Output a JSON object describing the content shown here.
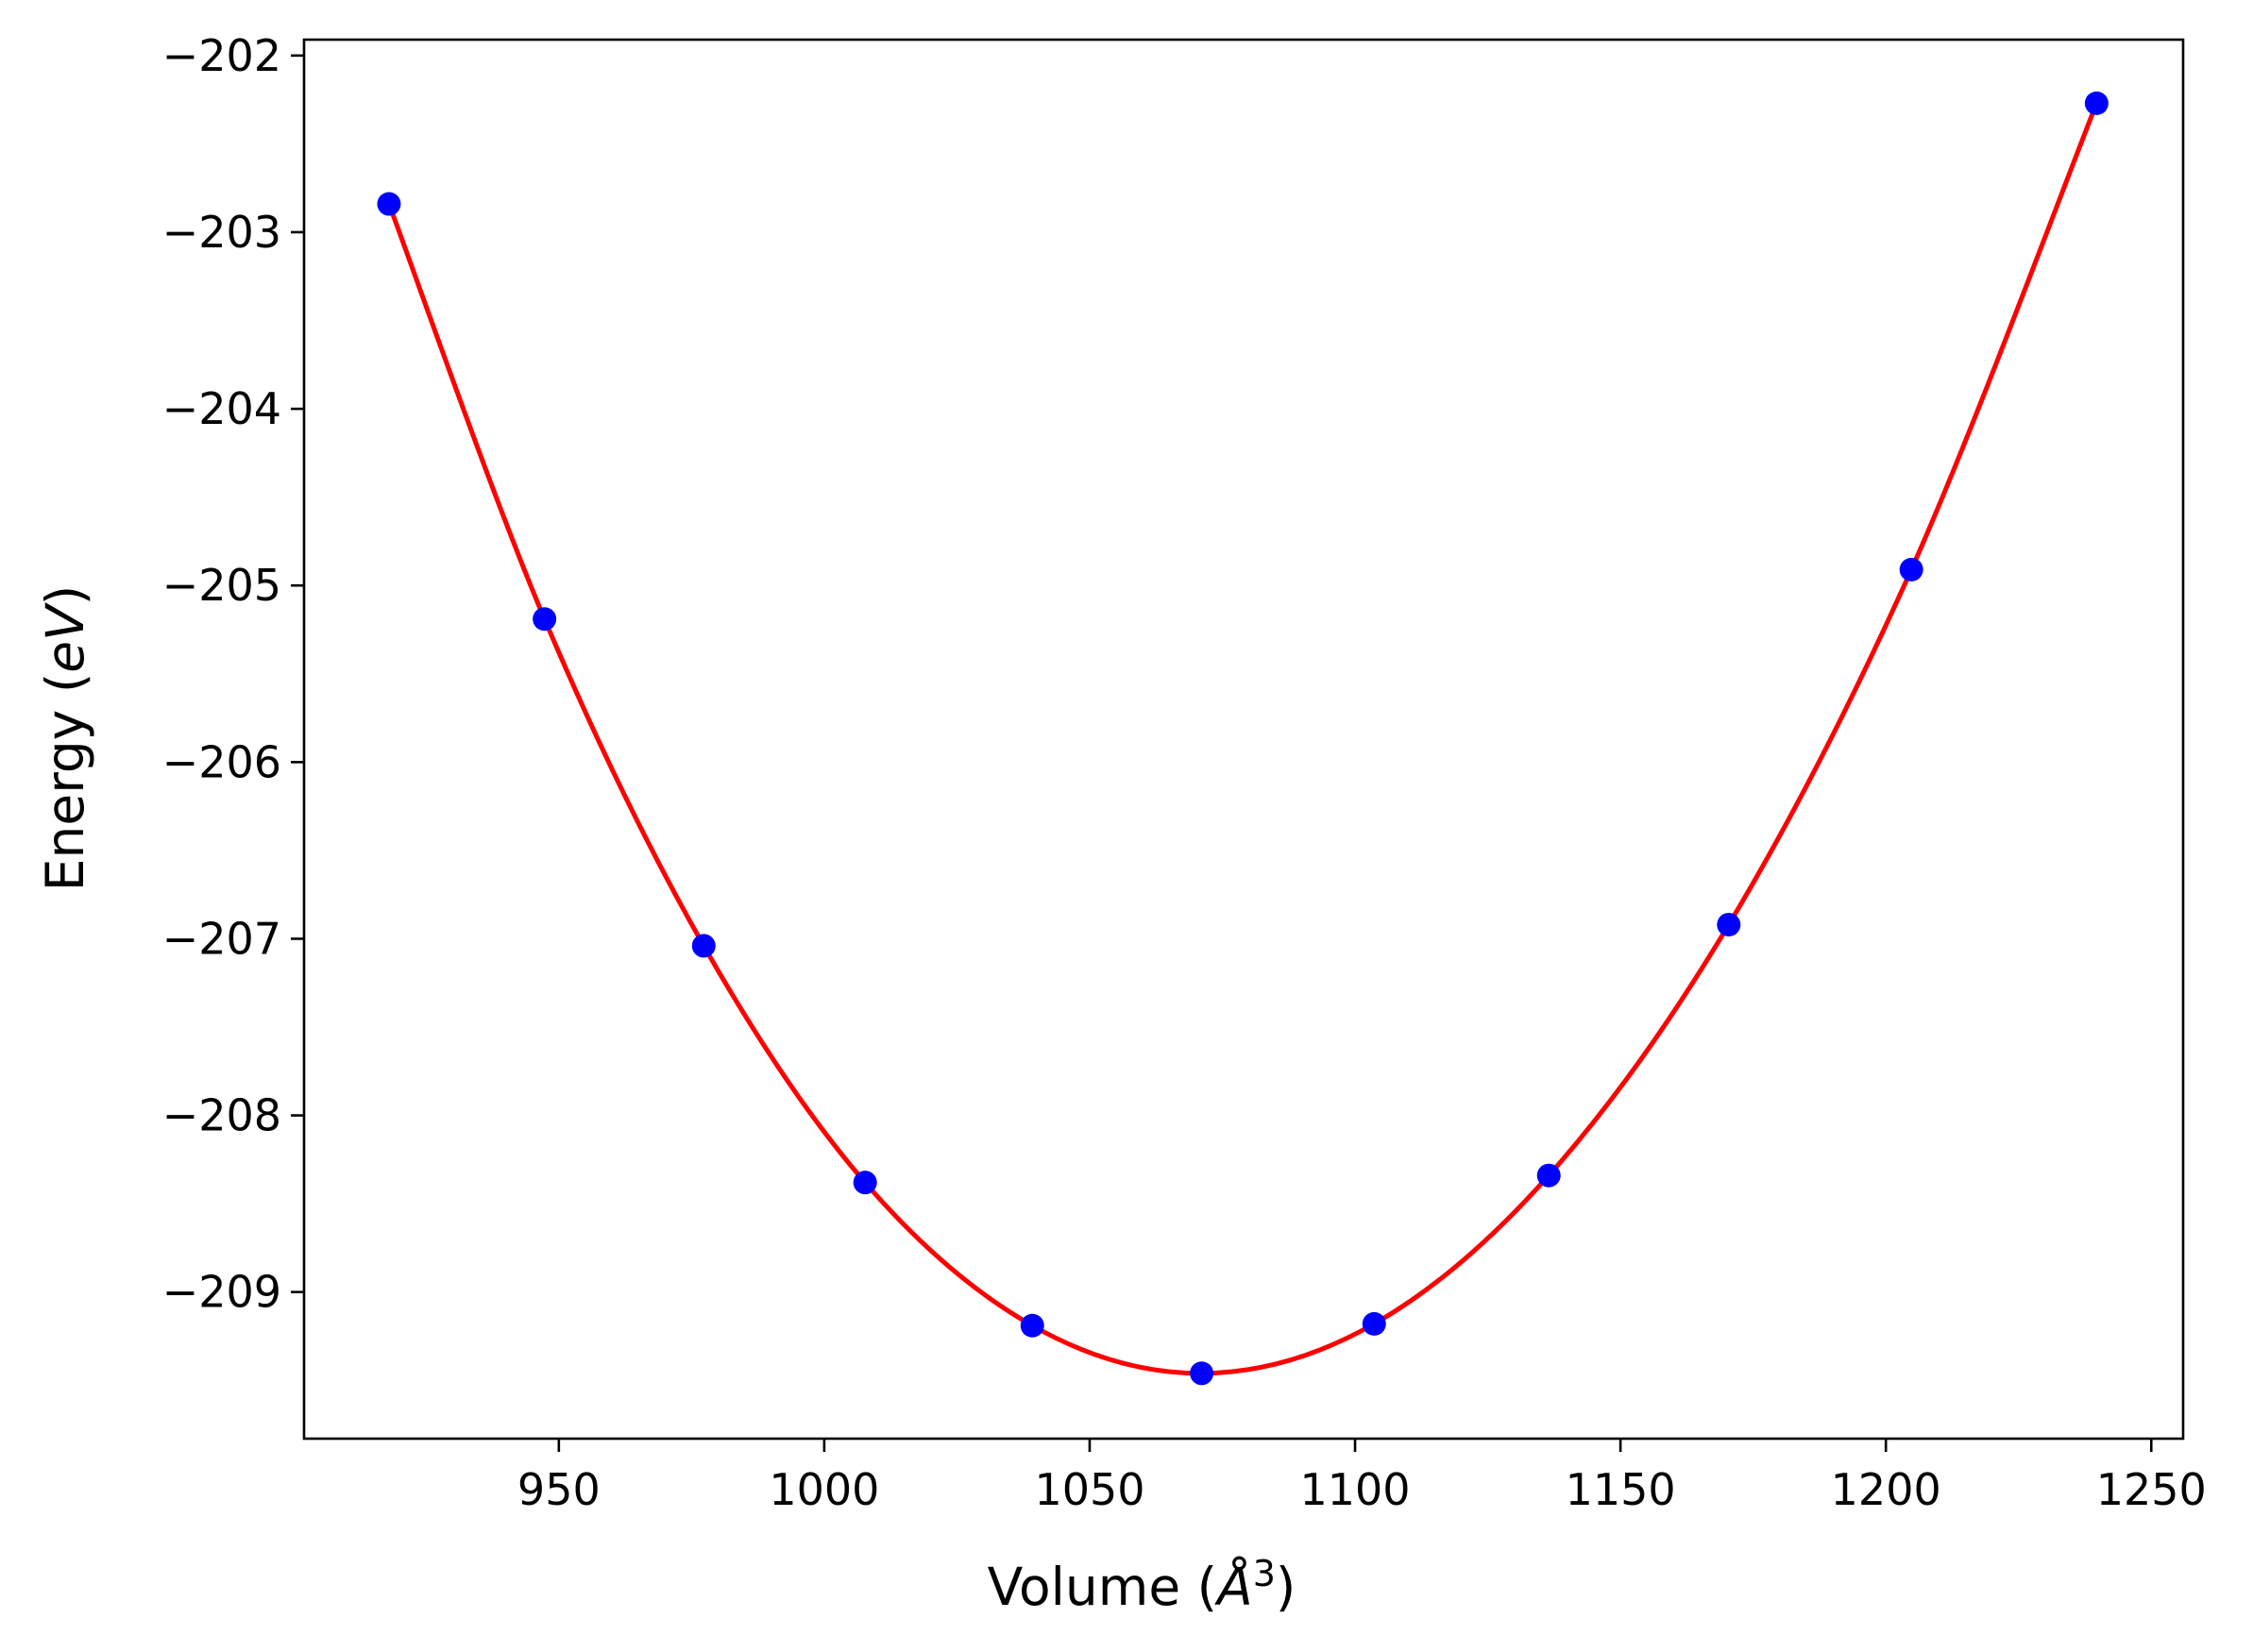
{
  "chart_data": {
    "type": "line",
    "title": "",
    "xlabel": "Volume (",
    "xlabel_symbol": "Å",
    "xlabel_exp": "3",
    "xlabel_close": ")",
    "ylabel": "Energy (",
    "ylabel_symbol": "eV",
    "ylabel_close": ")",
    "xlim": [
      902,
      1256
    ],
    "ylim": [
      -209.83,
      -201.91
    ],
    "xticks": [
      950,
      1000,
      1050,
      1100,
      1150,
      1200,
      1250
    ],
    "yticks": [
      -209,
      -208,
      -207,
      -206,
      -205,
      -204,
      -203,
      -202
    ],
    "grid": false,
    "series": [
      {
        "kind": "scatter",
        "color": "#0000ff",
        "x": [
          918,
          947.3,
          977.3,
          1007.7,
          1039.2,
          1071.1,
          1103.6,
          1136.5,
          1170.4,
          1204.8,
          1239.7
        ],
        "y": [
          -202.84,
          -205.19,
          -207.04,
          -208.38,
          -209.19,
          -209.46,
          -209.18,
          -208.34,
          -206.92,
          -204.91,
          -202.27
        ]
      },
      {
        "kind": "line",
        "color": "#ff0000",
        "x": [
          918,
          947.3,
          977.3,
          1007.7,
          1039.2,
          1071.1,
          1103.6,
          1136.5,
          1170.4,
          1204.8,
          1239.7
        ],
        "y": [
          -202.84,
          -205.19,
          -207.04,
          -208.38,
          -209.19,
          -209.46,
          -209.18,
          -208.34,
          -206.92,
          -204.91,
          -202.27
        ]
      }
    ]
  }
}
